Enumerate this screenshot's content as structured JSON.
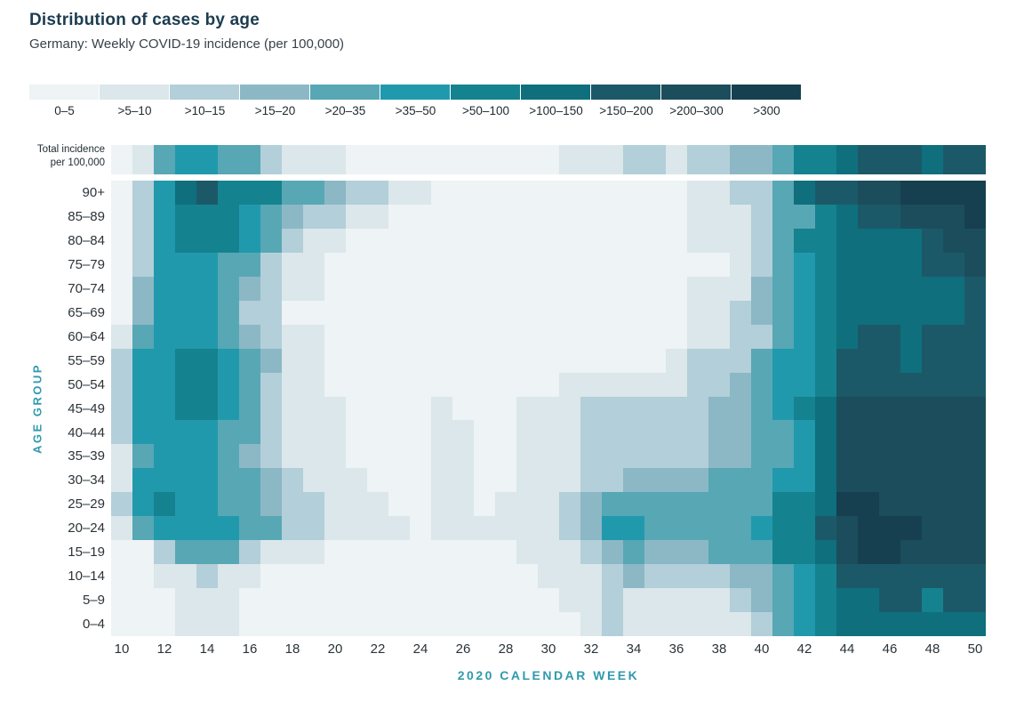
{
  "header": {
    "title": "Distribution of cases by age",
    "subtitle": "Germany: Weekly COVID-19 incidence (per 100,000)"
  },
  "legend": {
    "labels": [
      "0–5",
      ">5–10",
      ">10–15",
      ">15–20",
      ">20–35",
      ">35–50",
      ">50–100",
      ">100–150",
      ">150–200",
      ">200–300",
      ">300"
    ],
    "colors": [
      "#eef3f5",
      "#dbe7ea",
      "#b3cfd9",
      "#8cb8c5",
      "#58a7b5",
      "#2199ad",
      "#15828f",
      "#0f6f7d",
      "#1c5968",
      "#1c4d5c",
      "#16404f"
    ]
  },
  "axes": {
    "y_label": "AGE GROUP",
    "x_label": "2020 CALENDAR WEEK",
    "x_ticks": [
      "10",
      "12",
      "14",
      "16",
      "18",
      "20",
      "22",
      "24",
      "26",
      "28",
      "30",
      "32",
      "34",
      "36",
      "38",
      "40",
      "42",
      "44",
      "46",
      "48",
      "50"
    ]
  },
  "total_row": {
    "label_line1": "Total incidence",
    "label_line2": "per 100,000"
  },
  "chart_data": {
    "type": "heatmap",
    "title": "Distribution of cases by age",
    "subtitle": "Germany: Weekly COVID-19 incidence (per 100,000)",
    "xlabel": "2020 CALENDAR WEEK",
    "ylabel": "AGE GROUP",
    "value_encoding": "bin index into legend_bins (weekly incidence per 100,000)",
    "weeks": [
      10,
      11,
      12,
      13,
      14,
      15,
      16,
      17,
      18,
      19,
      20,
      21,
      22,
      23,
      24,
      25,
      26,
      27,
      28,
      29,
      30,
      31,
      32,
      33,
      34,
      35,
      36,
      37,
      38,
      39,
      40,
      41,
      42,
      43,
      44,
      45,
      46,
      47,
      48,
      49,
      50
    ],
    "legend_bins": [
      "0–5",
      ">5–10",
      ">10–15",
      ">15–20",
      ">20–35",
      ">35–50",
      ">50–100",
      ">100–150",
      ">150–200",
      ">200–300",
      ">300"
    ],
    "bin_colors": [
      "#eef3f5",
      "#dbe7ea",
      "#b3cfd9",
      "#8cb8c5",
      "#58a7b5",
      "#2199ad",
      "#15828f",
      "#0f6f7d",
      "#1c5968",
      "#1c4d5c",
      "#16404f"
    ],
    "age_groups": [
      "90+",
      "85–89",
      "80–84",
      "75–79",
      "70–74",
      "65–69",
      "60–64",
      "55–59",
      "50–54",
      "45–49",
      "40–44",
      "35–39",
      "30–34",
      "25–29",
      "20–24",
      "15–19",
      "10–14",
      "5–9",
      "0–4"
    ],
    "total_incidence_bins": [
      0,
      1,
      4,
      5,
      5,
      4,
      4,
      2,
      1,
      1,
      1,
      0,
      0,
      0,
      0,
      0,
      0,
      0,
      0,
      0,
      0,
      1,
      1,
      1,
      2,
      2,
      1,
      2,
      2,
      3,
      3,
      4,
      6,
      6,
      7,
      8,
      8,
      8,
      7,
      8,
      8
    ],
    "rows": [
      {
        "age": "90+",
        "bins": [
          0,
          2,
          5,
          7,
          8,
          6,
          6,
          6,
          4,
          4,
          3,
          2,
          2,
          1,
          1,
          0,
          0,
          0,
          0,
          0,
          0,
          0,
          0,
          0,
          0,
          0,
          0,
          1,
          1,
          2,
          2,
          4,
          7,
          8,
          8,
          9,
          9,
          10,
          10,
          10,
          10
        ]
      },
      {
        "age": "85–89",
        "bins": [
          0,
          2,
          5,
          6,
          6,
          6,
          5,
          4,
          3,
          2,
          2,
          1,
          1,
          0,
          0,
          0,
          0,
          0,
          0,
          0,
          0,
          0,
          0,
          0,
          0,
          0,
          0,
          1,
          1,
          1,
          2,
          4,
          4,
          6,
          7,
          8,
          8,
          9,
          9,
          9,
          10
        ]
      },
      {
        "age": "80–84",
        "bins": [
          0,
          2,
          5,
          6,
          6,
          6,
          5,
          4,
          2,
          1,
          1,
          0,
          0,
          0,
          0,
          0,
          0,
          0,
          0,
          0,
          0,
          0,
          0,
          0,
          0,
          0,
          0,
          1,
          1,
          1,
          2,
          4,
          6,
          6,
          7,
          7,
          7,
          7,
          8,
          9,
          9
        ]
      },
      {
        "age": "75–79",
        "bins": [
          0,
          2,
          5,
          5,
          5,
          4,
          4,
          2,
          1,
          1,
          0,
          0,
          0,
          0,
          0,
          0,
          0,
          0,
          0,
          0,
          0,
          0,
          0,
          0,
          0,
          0,
          0,
          0,
          0,
          1,
          2,
          4,
          5,
          6,
          7,
          7,
          7,
          7,
          8,
          8,
          9
        ]
      },
      {
        "age": "70–74",
        "bins": [
          0,
          3,
          5,
          5,
          5,
          4,
          3,
          2,
          1,
          1,
          0,
          0,
          0,
          0,
          0,
          0,
          0,
          0,
          0,
          0,
          0,
          0,
          0,
          0,
          0,
          0,
          0,
          1,
          1,
          1,
          3,
          4,
          5,
          6,
          7,
          7,
          7,
          7,
          7,
          7,
          8
        ]
      },
      {
        "age": "65–69",
        "bins": [
          0,
          3,
          5,
          5,
          5,
          4,
          2,
          2,
          0,
          0,
          0,
          0,
          0,
          0,
          0,
          0,
          0,
          0,
          0,
          0,
          0,
          0,
          0,
          0,
          0,
          0,
          0,
          1,
          1,
          2,
          3,
          4,
          5,
          6,
          7,
          7,
          7,
          7,
          7,
          7,
          8
        ]
      },
      {
        "age": "60–64",
        "bins": [
          1,
          4,
          5,
          5,
          5,
          4,
          3,
          2,
          1,
          1,
          0,
          0,
          0,
          0,
          0,
          0,
          0,
          0,
          0,
          0,
          0,
          0,
          0,
          0,
          0,
          0,
          0,
          1,
          1,
          2,
          2,
          4,
          5,
          6,
          7,
          8,
          8,
          7,
          8,
          8,
          8
        ]
      },
      {
        "age": "55–59",
        "bins": [
          2,
          5,
          5,
          6,
          6,
          5,
          4,
          3,
          1,
          1,
          0,
          0,
          0,
          0,
          0,
          0,
          0,
          0,
          0,
          0,
          0,
          0,
          0,
          0,
          0,
          0,
          1,
          2,
          2,
          2,
          4,
          5,
          5,
          6,
          8,
          8,
          8,
          7,
          8,
          8,
          8
        ]
      },
      {
        "age": "50–54",
        "bins": [
          2,
          5,
          5,
          6,
          6,
          5,
          4,
          2,
          1,
          1,
          0,
          0,
          0,
          0,
          0,
          0,
          0,
          0,
          0,
          0,
          0,
          1,
          1,
          1,
          1,
          1,
          1,
          2,
          2,
          3,
          4,
          5,
          5,
          6,
          8,
          8,
          8,
          8,
          8,
          8,
          8
        ]
      },
      {
        "age": "45–49",
        "bins": [
          2,
          5,
          5,
          6,
          6,
          5,
          4,
          2,
          1,
          1,
          1,
          0,
          0,
          0,
          0,
          1,
          0,
          0,
          0,
          1,
          1,
          1,
          2,
          2,
          2,
          2,
          2,
          2,
          3,
          3,
          4,
          5,
          6,
          7,
          9,
          9,
          9,
          9,
          9,
          9,
          9
        ]
      },
      {
        "age": "40–44",
        "bins": [
          2,
          5,
          5,
          5,
          5,
          4,
          4,
          2,
          1,
          1,
          1,
          0,
          0,
          0,
          0,
          1,
          1,
          0,
          0,
          1,
          1,
          1,
          2,
          2,
          2,
          2,
          2,
          2,
          3,
          3,
          4,
          4,
          5,
          7,
          9,
          9,
          9,
          9,
          9,
          9,
          9
        ]
      },
      {
        "age": "35–39",
        "bins": [
          1,
          4,
          5,
          5,
          5,
          4,
          3,
          2,
          1,
          1,
          1,
          0,
          0,
          0,
          0,
          1,
          1,
          0,
          0,
          1,
          1,
          1,
          2,
          2,
          2,
          2,
          2,
          2,
          3,
          3,
          4,
          4,
          5,
          7,
          9,
          9,
          9,
          9,
          9,
          9,
          9
        ]
      },
      {
        "age": "30–34",
        "bins": [
          1,
          5,
          5,
          5,
          5,
          4,
          4,
          3,
          2,
          1,
          1,
          1,
          0,
          0,
          0,
          1,
          1,
          0,
          0,
          1,
          1,
          1,
          2,
          2,
          3,
          3,
          3,
          3,
          4,
          4,
          4,
          5,
          5,
          7,
          9,
          9,
          9,
          9,
          9,
          9,
          9
        ]
      },
      {
        "age": "25–29",
        "bins": [
          2,
          5,
          6,
          5,
          5,
          4,
          4,
          3,
          2,
          2,
          1,
          1,
          1,
          0,
          0,
          1,
          1,
          0,
          1,
          1,
          1,
          2,
          3,
          4,
          4,
          4,
          4,
          4,
          4,
          4,
          4,
          6,
          6,
          7,
          10,
          10,
          9,
          9,
          9,
          9,
          9
        ]
      },
      {
        "age": "20–24",
        "bins": [
          1,
          4,
          5,
          5,
          5,
          5,
          4,
          4,
          2,
          2,
          1,
          1,
          1,
          1,
          0,
          1,
          1,
          1,
          1,
          1,
          1,
          2,
          3,
          5,
          5,
          4,
          4,
          4,
          4,
          4,
          5,
          6,
          6,
          8,
          9,
          10,
          10,
          10,
          9,
          9,
          9
        ]
      },
      {
        "age": "15–19",
        "bins": [
          0,
          0,
          2,
          4,
          4,
          4,
          2,
          1,
          1,
          1,
          0,
          0,
          0,
          0,
          0,
          0,
          0,
          0,
          0,
          1,
          1,
          1,
          2,
          3,
          4,
          3,
          3,
          3,
          4,
          4,
          4,
          6,
          6,
          7,
          9,
          10,
          10,
          9,
          9,
          9,
          9
        ]
      },
      {
        "age": "10–14",
        "bins": [
          0,
          0,
          1,
          1,
          2,
          1,
          1,
          0,
          0,
          0,
          0,
          0,
          0,
          0,
          0,
          0,
          0,
          0,
          0,
          0,
          1,
          1,
          1,
          2,
          3,
          2,
          2,
          2,
          2,
          3,
          3,
          4,
          5,
          6,
          8,
          8,
          8,
          8,
          8,
          8,
          8
        ]
      },
      {
        "age": "5–9",
        "bins": [
          0,
          0,
          0,
          1,
          1,
          1,
          0,
          0,
          0,
          0,
          0,
          0,
          0,
          0,
          0,
          0,
          0,
          0,
          0,
          0,
          0,
          1,
          1,
          2,
          1,
          1,
          1,
          1,
          1,
          2,
          3,
          4,
          5,
          6,
          7,
          7,
          8,
          8,
          6,
          8,
          8
        ]
      },
      {
        "age": "0–4",
        "bins": [
          0,
          0,
          0,
          1,
          1,
          1,
          0,
          0,
          0,
          0,
          0,
          0,
          0,
          0,
          0,
          0,
          0,
          0,
          0,
          0,
          0,
          0,
          1,
          2,
          1,
          1,
          1,
          1,
          1,
          1,
          2,
          4,
          5,
          6,
          7,
          7,
          7,
          7,
          7,
          7,
          7
        ]
      }
    ]
  }
}
